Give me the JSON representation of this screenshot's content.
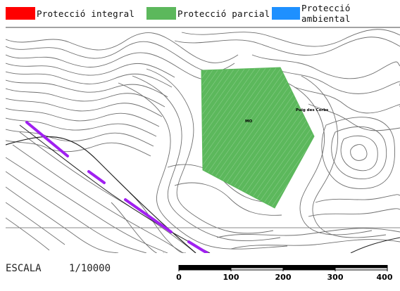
{
  "legend": {
    "items": [
      {
        "label": "Protecció integral",
        "color": "#ff0000"
      },
      {
        "label": "Protecció parcial",
        "color": "#5cb85c"
      },
      {
        "label": "Protecció ambiental",
        "color": "#1e90ff"
      }
    ]
  },
  "map": {
    "labels": {
      "point": "MO",
      "place": "Puig des Corbs"
    },
    "colors": {
      "contour": "#6e6e6e",
      "road": "#222222",
      "route": "#a020f0",
      "zone": "#5cb85c"
    }
  },
  "scale": {
    "label": "ESCALA",
    "ratio": "1/10000",
    "ticks": [
      "0",
      "100",
      "200",
      "300",
      "400"
    ]
  }
}
